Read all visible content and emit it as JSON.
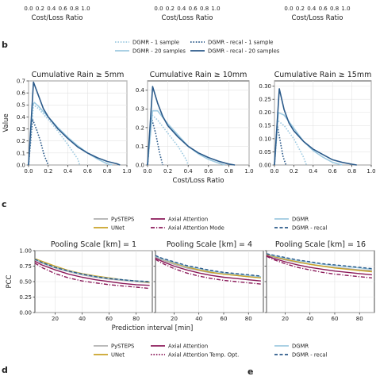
{
  "panel_labels": {
    "b": "b",
    "c": "c",
    "d": "d",
    "e": "e"
  },
  "top_fragment": {
    "xlabel": "Cost/Loss Ratio",
    "ticks": [
      "0.0",
      "0.2",
      "0.4",
      "0.6",
      "0.8",
      "1.0"
    ]
  },
  "legend_b": [
    {
      "name": "DGMR - 1 sample",
      "color": "#9ecae1",
      "dash": "dotted"
    },
    {
      "name": "DGMR - recal - 1 sample",
      "color": "#2b5a8a",
      "dash": "dotted"
    },
    {
      "name": "DGMR - 20 samples",
      "color": "#9ecae1",
      "dash": "solid"
    },
    {
      "name": "DGMR - recal - 20 samples",
      "color": "#2b5a8a",
      "dash": "solid"
    }
  ],
  "legend_c": [
    {
      "name": "PySTEPS",
      "color": "#b0b0b0",
      "dash": "solid"
    },
    {
      "name": "Axial Attention",
      "color": "#8b1a5a",
      "dash": "solid"
    },
    {
      "name": "DGMR",
      "color": "#9ecae1",
      "dash": "solid"
    },
    {
      "name": "UNet",
      "color": "#c9a227",
      "dash": "solid"
    },
    {
      "name": "Axial Attention Mode",
      "color": "#8b1a5a",
      "dash": "dashdot"
    },
    {
      "name": "DGMR - recal",
      "color": "#2b5a8a",
      "dash": "dashed"
    }
  ],
  "legend_d": [
    {
      "name": "PySTEPS",
      "color": "#b0b0b0",
      "dash": "solid"
    },
    {
      "name": "Axial Attention",
      "color": "#8b1a5a",
      "dash": "solid"
    },
    {
      "name": "DGMR",
      "color": "#9ecae1",
      "dash": "solid"
    },
    {
      "name": "UNet",
      "color": "#c9a227",
      "dash": "solid"
    },
    {
      "name": "Axial Attention Temp. Opt.",
      "color": "#8b1a5a",
      "dash": "dotted"
    },
    {
      "name": "DGMR - recal",
      "color": "#2b5a8a",
      "dash": "dashed"
    }
  ],
  "chart_data": [
    {
      "type": "line",
      "title": "Cumulative Rain ≥ 5mm",
      "xlabel": "",
      "ylabel": "Value",
      "xlim": [
        0,
        1
      ],
      "ylim": [
        0,
        0.7
      ],
      "xticks": [
        0.0,
        0.2,
        0.4,
        0.6,
        0.8,
        1.0
      ],
      "yticks": [
        0.0,
        0.1,
        0.2,
        0.3,
        0.4,
        0.5,
        0.6,
        0.7
      ],
      "ytick_labels": [
        "0.0",
        "0.1",
        "0.2",
        "0.3",
        "0.4",
        "0.5",
        "0.6",
        "0.7"
      ],
      "grid": true,
      "series": [
        {
          "name": "DGMR - 1 sample",
          "x": [
            0.0,
            0.05,
            0.1,
            0.2,
            0.3,
            0.4,
            0.5,
            0.52
          ],
          "y": [
            0.0,
            0.5,
            0.47,
            0.38,
            0.28,
            0.17,
            0.05,
            0.0
          ]
        },
        {
          "name": "DGMR - recal - 1 sample",
          "x": [
            0.0,
            0.04,
            0.08,
            0.12,
            0.16,
            0.2
          ],
          "y": [
            0.0,
            0.38,
            0.3,
            0.2,
            0.08,
            0.0
          ]
        },
        {
          "name": "DGMR - 20 samples",
          "x": [
            0.0,
            0.04,
            0.06,
            0.1,
            0.2,
            0.3,
            0.4,
            0.5,
            0.6,
            0.7,
            0.8,
            0.85
          ],
          "y": [
            0.0,
            0.5,
            0.52,
            0.49,
            0.4,
            0.31,
            0.23,
            0.16,
            0.1,
            0.05,
            0.01,
            0.0
          ]
        },
        {
          "name": "DGMR - recal - 20 samples",
          "x": [
            0.0,
            0.05,
            0.1,
            0.15,
            0.2,
            0.3,
            0.4,
            0.5,
            0.6,
            0.7,
            0.8,
            0.9,
            0.93
          ],
          "y": [
            0.0,
            0.69,
            0.58,
            0.47,
            0.4,
            0.3,
            0.22,
            0.15,
            0.1,
            0.06,
            0.03,
            0.01,
            0.0
          ]
        }
      ]
    },
    {
      "type": "line",
      "title": "Cumulative Rain ≥ 10mm",
      "xlabel": "Cost/Loss Ratio",
      "ylabel": "",
      "xlim": [
        0,
        1
      ],
      "ylim": [
        0,
        0.45
      ],
      "xticks": [
        0.0,
        0.2,
        0.4,
        0.6,
        0.8,
        1.0
      ],
      "yticks": [
        0.0,
        0.1,
        0.2,
        0.3,
        0.4
      ],
      "ytick_labels": [
        "0.0",
        "0.1",
        "0.2",
        "0.3",
        "0.4"
      ],
      "grid": true,
      "series": [
        {
          "name": "DGMR - 1 sample",
          "x": [
            0.0,
            0.04,
            0.1,
            0.2,
            0.3,
            0.38,
            0.4
          ],
          "y": [
            0.0,
            0.27,
            0.24,
            0.17,
            0.1,
            0.03,
            0.0
          ]
        },
        {
          "name": "DGMR - recal - 1 sample",
          "x": [
            0.0,
            0.04,
            0.08,
            0.12,
            0.15
          ],
          "y": [
            0.0,
            0.25,
            0.17,
            0.06,
            0.0
          ]
        },
        {
          "name": "DGMR - 20 samples",
          "x": [
            0.0,
            0.05,
            0.1,
            0.2,
            0.3,
            0.4,
            0.5,
            0.6,
            0.7,
            0.76
          ],
          "y": [
            0.0,
            0.29,
            0.29,
            0.22,
            0.16,
            0.1,
            0.06,
            0.03,
            0.01,
            0.0
          ]
        },
        {
          "name": "DGMR - recal - 20 samples",
          "x": [
            0.0,
            0.05,
            0.1,
            0.15,
            0.2,
            0.3,
            0.4,
            0.5,
            0.6,
            0.7,
            0.8,
            0.86
          ],
          "y": [
            0.0,
            0.42,
            0.33,
            0.26,
            0.21,
            0.15,
            0.1,
            0.065,
            0.04,
            0.02,
            0.005,
            0.0
          ]
        }
      ]
    },
    {
      "type": "line",
      "title": "Cumulative Rain ≥ 15mm",
      "xlabel": "",
      "ylabel": "",
      "xlim": [
        0,
        1
      ],
      "ylim": [
        0,
        0.32
      ],
      "xticks": [
        0.0,
        0.2,
        0.4,
        0.6,
        0.8,
        1.0
      ],
      "yticks": [
        0.0,
        0.05,
        0.1,
        0.15,
        0.2,
        0.25,
        0.3
      ],
      "ytick_labels": [
        "0.00",
        "0.05",
        "0.10",
        "0.15",
        "0.20",
        "0.25",
        "0.30"
      ],
      "grid": true,
      "series": [
        {
          "name": "DGMR - 1 sample",
          "x": [
            0.0,
            0.03,
            0.1,
            0.2,
            0.3,
            0.33
          ],
          "y": [
            0.0,
            0.17,
            0.15,
            0.1,
            0.03,
            0.0
          ]
        },
        {
          "name": "DGMR - recal - 1 sample",
          "x": [
            0.0,
            0.03,
            0.06,
            0.09,
            0.12
          ],
          "y": [
            0.0,
            0.15,
            0.09,
            0.03,
            0.0
          ]
        },
        {
          "name": "DGMR - 20 samples",
          "x": [
            0.0,
            0.04,
            0.1,
            0.2,
            0.3,
            0.4,
            0.5,
            0.6,
            0.7
          ],
          "y": [
            0.0,
            0.2,
            0.19,
            0.14,
            0.09,
            0.055,
            0.03,
            0.01,
            0.0
          ]
        },
        {
          "name": "DGMR - recal - 20 samples",
          "x": [
            0.0,
            0.05,
            0.1,
            0.15,
            0.2,
            0.3,
            0.4,
            0.5,
            0.6,
            0.7,
            0.8,
            0.85
          ],
          "y": [
            0.0,
            0.29,
            0.21,
            0.16,
            0.13,
            0.09,
            0.06,
            0.04,
            0.02,
            0.01,
            0.003,
            0.0
          ]
        }
      ]
    },
    {
      "type": "line",
      "title": "Pooling Scale [km] = 1",
      "xlabel": "",
      "ylabel": "PCC",
      "xlim": [
        5,
        92
      ],
      "ylim": [
        0,
        1.0
      ],
      "xticks": [
        20,
        40,
        60,
        80
      ],
      "yticks": [
        0.0,
        0.25,
        0.5,
        0.75,
        1.0
      ],
      "ytick_labels": [
        "0.00",
        "0.25",
        "0.50",
        "0.75",
        "1.00"
      ],
      "grid": true,
      "series": [
        {
          "name": "PySTEPS",
          "x": [
            5,
            10,
            20,
            30,
            40,
            50,
            60,
            70,
            80,
            90
          ],
          "y": [
            0.86,
            0.8,
            0.72,
            0.66,
            0.61,
            0.57,
            0.54,
            0.52,
            0.5,
            0.48
          ]
        },
        {
          "name": "UNet",
          "x": [
            5,
            10,
            20,
            30,
            40,
            50,
            60,
            70,
            80,
            90
          ],
          "y": [
            0.87,
            0.83,
            0.75,
            0.68,
            0.63,
            0.59,
            0.56,
            0.53,
            0.51,
            0.49
          ]
        },
        {
          "name": "Axial Attention",
          "x": [
            5,
            10,
            20,
            30,
            40,
            50,
            60,
            70,
            80,
            90
          ],
          "y": [
            0.83,
            0.77,
            0.69,
            0.62,
            0.57,
            0.53,
            0.5,
            0.47,
            0.45,
            0.44
          ]
        },
        {
          "name": "Axial Attention Mode",
          "x": [
            5,
            10,
            20,
            30,
            40,
            50,
            60,
            70,
            80,
            90
          ],
          "y": [
            0.8,
            0.73,
            0.63,
            0.56,
            0.51,
            0.48,
            0.45,
            0.43,
            0.41,
            0.39
          ]
        },
        {
          "name": "DGMR",
          "x": [
            5,
            10,
            20,
            30,
            40,
            50,
            60,
            70,
            80,
            90
          ],
          "y": [
            0.86,
            0.81,
            0.73,
            0.67,
            0.62,
            0.58,
            0.55,
            0.53,
            0.51,
            0.5
          ]
        },
        {
          "name": "DGMR - recal",
          "x": [
            5,
            10,
            20,
            30,
            40,
            50,
            60,
            70,
            80,
            90
          ],
          "y": [
            0.86,
            0.81,
            0.73,
            0.67,
            0.62,
            0.58,
            0.55,
            0.53,
            0.51,
            0.5
          ]
        }
      ]
    },
    {
      "type": "line",
      "title": "Pooling Scale [km] = 4",
      "xlabel": "Prediction interval [min]",
      "ylabel": "",
      "xlim": [
        5,
        92
      ],
      "ylim": [
        0,
        1.0
      ],
      "xticks": [
        20,
        40,
        60,
        80
      ],
      "yticks": [
        0.0,
        0.25,
        0.5,
        0.75,
        1.0
      ],
      "ytick_labels": [],
      "grid": true,
      "series": [
        {
          "name": "PySTEPS",
          "x": [
            5,
            10,
            20,
            30,
            40,
            50,
            60,
            70,
            80,
            90
          ],
          "y": [
            0.9,
            0.85,
            0.78,
            0.72,
            0.68,
            0.64,
            0.62,
            0.6,
            0.58,
            0.56
          ]
        },
        {
          "name": "UNet",
          "x": [
            5,
            10,
            20,
            30,
            40,
            50,
            60,
            70,
            80,
            90
          ],
          "y": [
            0.91,
            0.87,
            0.8,
            0.74,
            0.69,
            0.65,
            0.62,
            0.6,
            0.58,
            0.56
          ]
        },
        {
          "name": "Axial Attention",
          "x": [
            5,
            10,
            20,
            30,
            40,
            50,
            60,
            70,
            80,
            90
          ],
          "y": [
            0.88,
            0.83,
            0.75,
            0.69,
            0.64,
            0.6,
            0.57,
            0.55,
            0.53,
            0.51
          ]
        },
        {
          "name": "Axial Attention Mode",
          "x": [
            5,
            10,
            20,
            30,
            40,
            50,
            60,
            70,
            80,
            90
          ],
          "y": [
            0.86,
            0.8,
            0.71,
            0.64,
            0.59,
            0.55,
            0.52,
            0.5,
            0.48,
            0.46
          ]
        },
        {
          "name": "DGMR",
          "x": [
            5,
            10,
            20,
            30,
            40,
            50,
            60,
            70,
            80,
            90
          ],
          "y": [
            0.91,
            0.87,
            0.81,
            0.75,
            0.71,
            0.67,
            0.64,
            0.62,
            0.6,
            0.58
          ]
        },
        {
          "name": "DGMR - recal",
          "x": [
            5,
            10,
            20,
            30,
            40,
            50,
            60,
            70,
            80,
            90
          ],
          "y": [
            0.92,
            0.88,
            0.82,
            0.76,
            0.72,
            0.68,
            0.65,
            0.63,
            0.61,
            0.59
          ]
        }
      ]
    },
    {
      "type": "line",
      "title": "Pooling Scale [km] = 16",
      "xlabel": "",
      "ylabel": "",
      "xlim": [
        5,
        92
      ],
      "ylim": [
        0,
        1.0
      ],
      "xticks": [
        20,
        40,
        60,
        80
      ],
      "yticks": [
        0.0,
        0.25,
        0.5,
        0.75,
        1.0
      ],
      "ytick_labels": [],
      "grid": true,
      "series": [
        {
          "name": "PySTEPS",
          "x": [
            5,
            10,
            20,
            30,
            40,
            50,
            60,
            70,
            80,
            90
          ],
          "y": [
            0.94,
            0.9,
            0.85,
            0.81,
            0.78,
            0.75,
            0.73,
            0.71,
            0.69,
            0.68
          ]
        },
        {
          "name": "UNet",
          "x": [
            5,
            10,
            20,
            30,
            40,
            50,
            60,
            70,
            80,
            90
          ],
          "y": [
            0.94,
            0.91,
            0.86,
            0.82,
            0.78,
            0.75,
            0.72,
            0.7,
            0.68,
            0.66
          ]
        },
        {
          "name": "Axial Attention",
          "x": [
            5,
            10,
            20,
            30,
            40,
            50,
            60,
            70,
            80,
            90
          ],
          "y": [
            0.92,
            0.88,
            0.82,
            0.77,
            0.73,
            0.7,
            0.67,
            0.65,
            0.63,
            0.61
          ]
        },
        {
          "name": "Axial Attention Mode",
          "x": [
            5,
            10,
            20,
            30,
            40,
            50,
            60,
            70,
            80,
            90
          ],
          "y": [
            0.91,
            0.86,
            0.79,
            0.73,
            0.69,
            0.65,
            0.62,
            0.6,
            0.58,
            0.56
          ]
        },
        {
          "name": "DGMR",
          "x": [
            5,
            10,
            20,
            30,
            40,
            50,
            60,
            70,
            80,
            90
          ],
          "y": [
            0.95,
            0.92,
            0.88,
            0.84,
            0.81,
            0.78,
            0.76,
            0.74,
            0.72,
            0.7
          ]
        },
        {
          "name": "DGMR - recal",
          "x": [
            5,
            10,
            20,
            30,
            40,
            50,
            60,
            70,
            80,
            90
          ],
          "y": [
            0.95,
            0.93,
            0.89,
            0.85,
            0.82,
            0.79,
            0.77,
            0.75,
            0.73,
            0.71
          ]
        }
      ]
    }
  ]
}
